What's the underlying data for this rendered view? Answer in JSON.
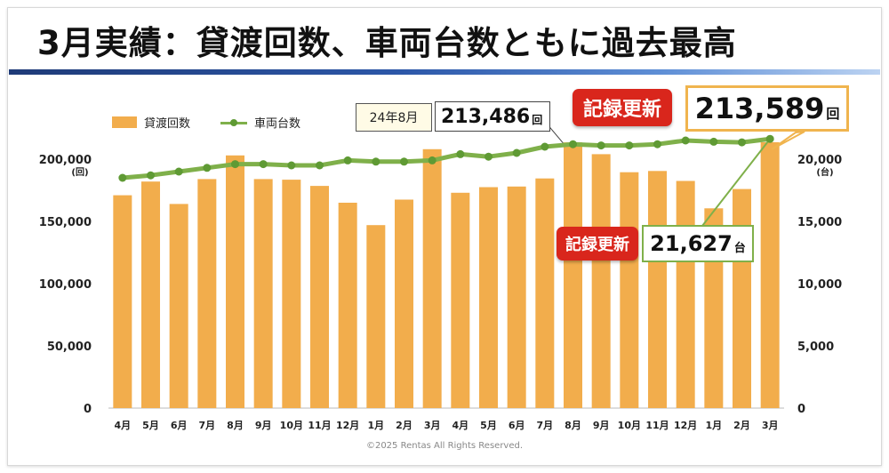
{
  "title": "3月実績：貸渡回数、車両台数ともに過去最高",
  "legend": {
    "bar_label": "貸渡回数",
    "line_label": "車両台数"
  },
  "callouts": {
    "aug_tag": "24年8月",
    "aug_value": "213,486",
    "aug_unit": "回",
    "record_label_top": "記録更新",
    "record_label_mid": "記録更新",
    "mar_value": "213,589",
    "mar_unit": "回",
    "vehicle_value": "21,627",
    "vehicle_unit": "台"
  },
  "footer": "©2025 Rentas All Rights Reserved.",
  "colors": {
    "bar": "#f2ad4c",
    "line": "#7fb04a",
    "marker": "#5f9a34",
    "badge": "#d9261c"
  },
  "chart_data": {
    "type": "bar",
    "categories": [
      "4月",
      "5月",
      "6月",
      "7月",
      "8月",
      "9月",
      "10月",
      "11月",
      "12月",
      "1月",
      "2月",
      "3月",
      "4月",
      "5月",
      "6月",
      "7月",
      "8月",
      "9月",
      "10月",
      "11月",
      "12月",
      "1月",
      "2月",
      "3月"
    ],
    "series": [
      {
        "name": "貸渡回数",
        "type": "bar",
        "axis": "left",
        "values": [
          171000,
          182000,
          164000,
          184000,
          203000,
          184000,
          183500,
          178500,
          165000,
          147000,
          167500,
          208000,
          173000,
          177500,
          178000,
          184500,
          213486,
          204000,
          189500,
          190500,
          182500,
          160500,
          176000,
          213589
        ]
      },
      {
        "name": "車両台数",
        "type": "line",
        "axis": "right",
        "values": [
          18500,
          18700,
          19000,
          19300,
          19600,
          19600,
          19500,
          19500,
          19900,
          19800,
          19800,
          19900,
          20400,
          20200,
          20500,
          21000,
          21200,
          21100,
          21100,
          21200,
          21500,
          21400,
          21350,
          21627
        ]
      }
    ],
    "y_left": {
      "min": 0,
      "max": 200000,
      "ticks": [
        "0",
        "50,000",
        "100,000",
        "150,000",
        "200,000"
      ],
      "unit": "(回)"
    },
    "y_right": {
      "min": 0,
      "max": 20000,
      "ticks": [
        "0",
        "5,000",
        "10,000",
        "15,000",
        "20,000"
      ],
      "unit": "(台)"
    },
    "grid": false,
    "legend_position": "top-left"
  }
}
